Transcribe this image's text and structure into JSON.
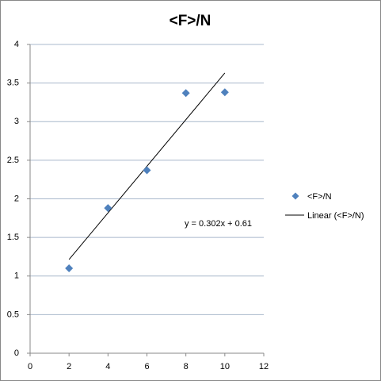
{
  "chart_data": {
    "type": "scatter",
    "title": "<F>/N",
    "series": [
      {
        "name": "<F>/N",
        "color": "#4f81bd",
        "x": [
          2,
          4,
          6,
          8,
          10
        ],
        "values": [
          1.1,
          1.88,
          2.37,
          3.37,
          3.38
        ]
      }
    ],
    "trendline": {
      "name": "Linear (<F>/N)",
      "equation": "y = 0.302x + 0.61",
      "slope": 0.302,
      "intercept": 0.61,
      "color": "#000000"
    },
    "xlim": [
      0,
      12
    ],
    "xticks": [
      0,
      2,
      4,
      6,
      8,
      10,
      12
    ],
    "ylim": [
      0,
      4
    ],
    "yticks": [
      0,
      0.5,
      1,
      1.5,
      2,
      2.5,
      3,
      3.5,
      4
    ],
    "grid": true,
    "legend": "right"
  }
}
